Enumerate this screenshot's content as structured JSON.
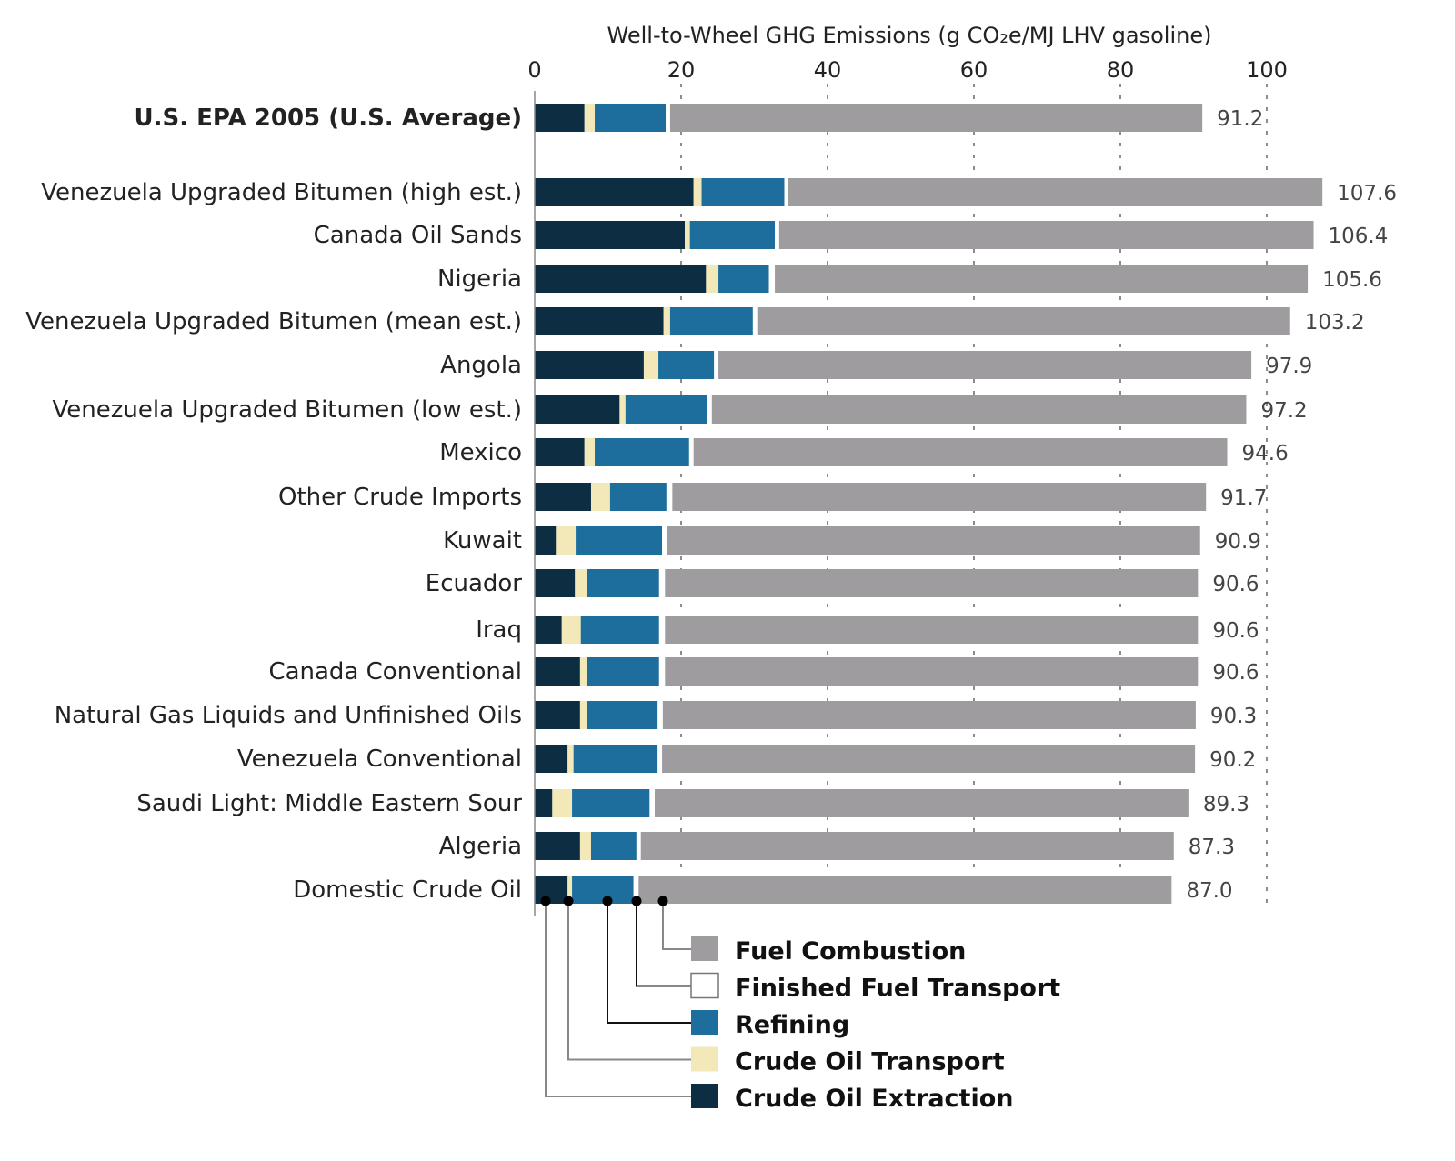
{
  "chart_data": {
    "type": "bar",
    "orientation": "horizontal",
    "stacked": true,
    "title": "Well-to-Wheel GHG Emissions (g CO₂e/MJ LHV gasoline)",
    "xlim": [
      0,
      100
    ],
    "xticks": [
      0,
      20,
      40,
      60,
      80,
      100
    ],
    "grid": "vertical dotted",
    "legend_placement": "bottom",
    "categories": [
      "U.S. EPA 2005 (U.S. Average)",
      "Venezuela Upgraded Bitumen (high est.)",
      "Canada Oil Sands",
      "Nigeria",
      "Venezuela Upgraded Bitumen (mean est.)",
      "Angola",
      "Venezuela Upgraded Bitumen (low est.)",
      "Mexico",
      "Other Crude Imports",
      "Kuwait",
      "Ecuador",
      "Iraq",
      "Canada Conventional",
      "Natural Gas Liquids and Unfinished Oils",
      "Venezuela Conventional",
      "Saudi Light: Middle Eastern Sour",
      "Algeria",
      "Domestic Crude Oil"
    ],
    "totals": [
      "91.2",
      "107.6",
      "106.4",
      "105.6",
      "103.2",
      "97.9",
      "97.2",
      "94.6",
      "91.7",
      "90.9",
      "90.6",
      "90.6",
      "90.6",
      "90.3",
      "90.2",
      "89.3",
      "87.3",
      "87.0"
    ],
    "series": [
      {
        "name": "Crude Oil Extraction",
        "color": "#0d2e42",
        "values": [
          6.8,
          21.7,
          20.5,
          23.4,
          17.6,
          14.9,
          11.6,
          6.8,
          7.7,
          2.9,
          5.5,
          3.7,
          6.2,
          6.2,
          4.5,
          2.4,
          6.2,
          4.5
        ]
      },
      {
        "name": "Crude Oil Transport",
        "color": "#f3e8b8",
        "values": [
          1.4,
          1.1,
          0.7,
          1.7,
          0.9,
          2.0,
          0.8,
          1.4,
          2.6,
          2.7,
          1.7,
          2.6,
          1.0,
          1.0,
          0.8,
          2.7,
          1.5,
          0.6
        ]
      },
      {
        "name": "Refining",
        "color": "#1d6e9c",
        "values": [
          9.7,
          11.3,
          11.6,
          6.9,
          11.3,
          7.6,
          11.2,
          12.9,
          7.7,
          11.8,
          9.8,
          10.7,
          9.8,
          9.6,
          11.5,
          10.6,
          6.2,
          8.4
        ]
      },
      {
        "name": "Finished Fuel Transport",
        "color": "#ffffff",
        "values": [
          0.6,
          0.5,
          0.6,
          0.8,
          0.6,
          0.6,
          0.6,
          0.6,
          0.8,
          0.7,
          0.8,
          0.8,
          0.8,
          0.7,
          0.6,
          0.7,
          0.6,
          0.7
        ]
      },
      {
        "name": "Fuel Combustion",
        "color": "#9e9c9f",
        "values": [
          72.7,
          73.0,
          73.0,
          72.8,
          72.8,
          72.8,
          73.0,
          72.9,
          72.9,
          72.8,
          72.8,
          72.8,
          72.8,
          72.8,
          72.8,
          72.9,
          72.8,
          72.8
        ]
      }
    ],
    "legend_order": [
      "Fuel Combustion",
      "Finished Fuel Transport",
      "Refining",
      "Crude Oil Transport",
      "Crude Oil Extraction"
    ]
  }
}
